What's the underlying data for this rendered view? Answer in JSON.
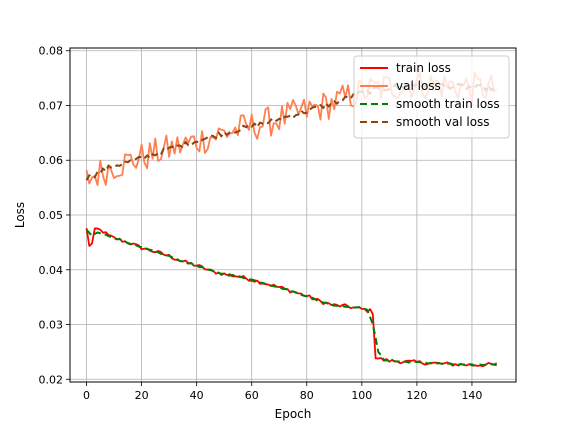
{
  "chart_data": {
    "type": "line",
    "xlabel": "Epoch",
    "ylabel": "Loss",
    "xlim": [
      -6,
      156
    ],
    "ylim": [
      0.0195,
      0.0805
    ],
    "xticks": [
      0,
      20,
      40,
      60,
      80,
      100,
      120,
      140
    ],
    "yticks": [
      0.02,
      0.03,
      0.04,
      0.05,
      0.06,
      0.07,
      0.08
    ],
    "xtick_labels": [
      "0",
      "20",
      "40",
      "60",
      "80",
      "100",
      "120",
      "140"
    ],
    "ytick_labels": [
      "0.02",
      "0.03",
      "0.04",
      "0.05",
      "0.06",
      "0.07",
      "0.08"
    ],
    "grid": true,
    "legend_position": "top-right",
    "series": [
      {
        "name": "train loss",
        "color": "#ff0000",
        "style": "solid",
        "keypoints": [
          [
            0,
            0.0475
          ],
          [
            1,
            0.0445
          ],
          [
            2,
            0.0447
          ],
          [
            3,
            0.0472
          ],
          [
            4,
            0.0474
          ],
          [
            6,
            0.047
          ],
          [
            8,
            0.0462
          ],
          [
            10,
            0.0458
          ],
          [
            15,
            0.045
          ],
          [
            20,
            0.044
          ],
          [
            25,
            0.0433
          ],
          [
            30,
            0.0425
          ],
          [
            35,
            0.0415
          ],
          [
            40,
            0.0408
          ],
          [
            45,
            0.0398
          ],
          [
            50,
            0.0392
          ],
          [
            55,
            0.0388
          ],
          [
            60,
            0.0382
          ],
          [
            65,
            0.0375
          ],
          [
            70,
            0.0368
          ],
          [
            75,
            0.036
          ],
          [
            80,
            0.0352
          ],
          [
            85,
            0.0342
          ],
          [
            90,
            0.0335
          ],
          [
            95,
            0.0333
          ],
          [
            100,
            0.0328
          ],
          [
            103,
            0.0325
          ],
          [
            104,
            0.0322
          ],
          [
            105,
            0.024
          ],
          [
            108,
            0.0235
          ],
          [
            112,
            0.0233
          ],
          [
            120,
            0.0231
          ],
          [
            130,
            0.0228
          ],
          [
            140,
            0.0226
          ],
          [
            149,
            0.0227
          ]
        ]
      },
      {
        "name": "val loss",
        "color": "#ff7f50",
        "style": "solid",
        "keypoints": [
          [
            0,
            0.0565
          ],
          [
            10,
            0.059
          ],
          [
            20,
            0.0605
          ],
          [
            30,
            0.062
          ],
          [
            40,
            0.0635
          ],
          [
            50,
            0.065
          ],
          [
            60,
            0.0662
          ],
          [
            70,
            0.0675
          ],
          [
            80,
            0.069
          ],
          [
            90,
            0.0705
          ],
          [
            100,
            0.0725
          ],
          [
            110,
            0.0735
          ],
          [
            120,
            0.074
          ],
          [
            130,
            0.0737
          ],
          [
            140,
            0.0733
          ],
          [
            149,
            0.073
          ]
        ]
      },
      {
        "name": "smooth train loss",
        "color": "#008000",
        "style": "dashed",
        "keypoints": [
          [
            0,
            0.0472
          ],
          [
            2,
            0.0462
          ],
          [
            4,
            0.0468
          ],
          [
            8,
            0.0462
          ],
          [
            15,
            0.045
          ],
          [
            20,
            0.044
          ],
          [
            25,
            0.0433
          ],
          [
            30,
            0.0425
          ],
          [
            35,
            0.0415
          ],
          [
            40,
            0.0408
          ],
          [
            45,
            0.0398
          ],
          [
            50,
            0.0392
          ],
          [
            55,
            0.0388
          ],
          [
            60,
            0.0382
          ],
          [
            65,
            0.0375
          ],
          [
            70,
            0.0368
          ],
          [
            75,
            0.036
          ],
          [
            80,
            0.0352
          ],
          [
            85,
            0.0342
          ],
          [
            90,
            0.0335
          ],
          [
            95,
            0.0333
          ],
          [
            100,
            0.033
          ],
          [
            102,
            0.0328
          ],
          [
            104,
            0.03
          ],
          [
            106,
            0.025
          ],
          [
            108,
            0.0236
          ],
          [
            112,
            0.0233
          ],
          [
            120,
            0.0231
          ],
          [
            130,
            0.0228
          ],
          [
            140,
            0.0226
          ],
          [
            149,
            0.0227
          ]
        ]
      },
      {
        "name": "smooth val loss",
        "color": "#8b4513",
        "style": "dashed",
        "keypoints": [
          [
            0,
            0.0567
          ],
          [
            10,
            0.059
          ],
          [
            20,
            0.0603
          ],
          [
            30,
            0.062
          ],
          [
            40,
            0.0635
          ],
          [
            50,
            0.065
          ],
          [
            60,
            0.0662
          ],
          [
            70,
            0.0675
          ],
          [
            80,
            0.069
          ],
          [
            90,
            0.0705
          ],
          [
            100,
            0.0723
          ],
          [
            110,
            0.0733
          ],
          [
            120,
            0.0738
          ],
          [
            130,
            0.0736
          ],
          [
            140,
            0.0733
          ],
          [
            149,
            0.0731
          ]
        ]
      }
    ]
  }
}
